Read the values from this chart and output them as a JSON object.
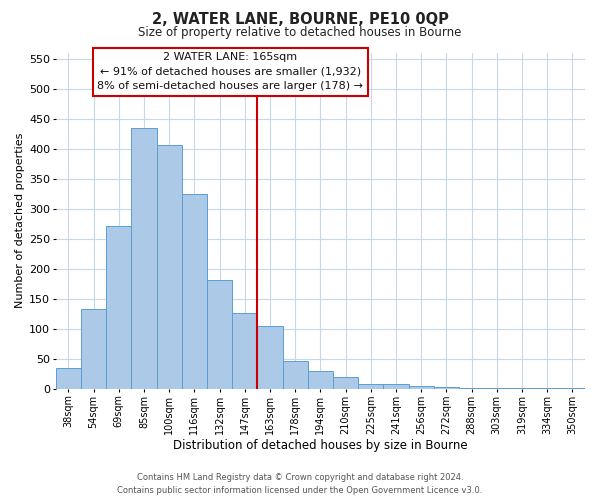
{
  "title": "2, WATER LANE, BOURNE, PE10 0QP",
  "subtitle": "Size of property relative to detached houses in Bourne",
  "xlabel": "Distribution of detached houses by size in Bourne",
  "ylabel": "Number of detached properties",
  "bar_labels": [
    "38sqm",
    "54sqm",
    "69sqm",
    "85sqm",
    "100sqm",
    "116sqm",
    "132sqm",
    "147sqm",
    "163sqm",
    "178sqm",
    "194sqm",
    "210sqm",
    "225sqm",
    "241sqm",
    "256sqm",
    "272sqm",
    "288sqm",
    "303sqm",
    "319sqm",
    "334sqm",
    "350sqm"
  ],
  "bar_heights": [
    35,
    133,
    272,
    435,
    406,
    324,
    182,
    126,
    105,
    46,
    30,
    20,
    8,
    8,
    5,
    3,
    2,
    1,
    1,
    1,
    1
  ],
  "bar_color": "#adc9e8",
  "bar_edge_color": "#5a9fd4",
  "vline_color": "#cc0000",
  "annotation_title": "2 WATER LANE: 165sqm",
  "annotation_line1": "← 91% of detached houses are smaller (1,932)",
  "annotation_line2": "8% of semi-detached houses are larger (178) →",
  "annotation_box_color": "#ffffff",
  "annotation_box_edge": "#cc0000",
  "ylim": [
    0,
    560
  ],
  "yticks": [
    0,
    50,
    100,
    150,
    200,
    250,
    300,
    350,
    400,
    450,
    500,
    550
  ],
  "footer_line1": "Contains HM Land Registry data © Crown copyright and database right 2024.",
  "footer_line2": "Contains public sector information licensed under the Open Government Licence v3.0.",
  "background_color": "#ffffff",
  "grid_color": "#c8d8e8"
}
